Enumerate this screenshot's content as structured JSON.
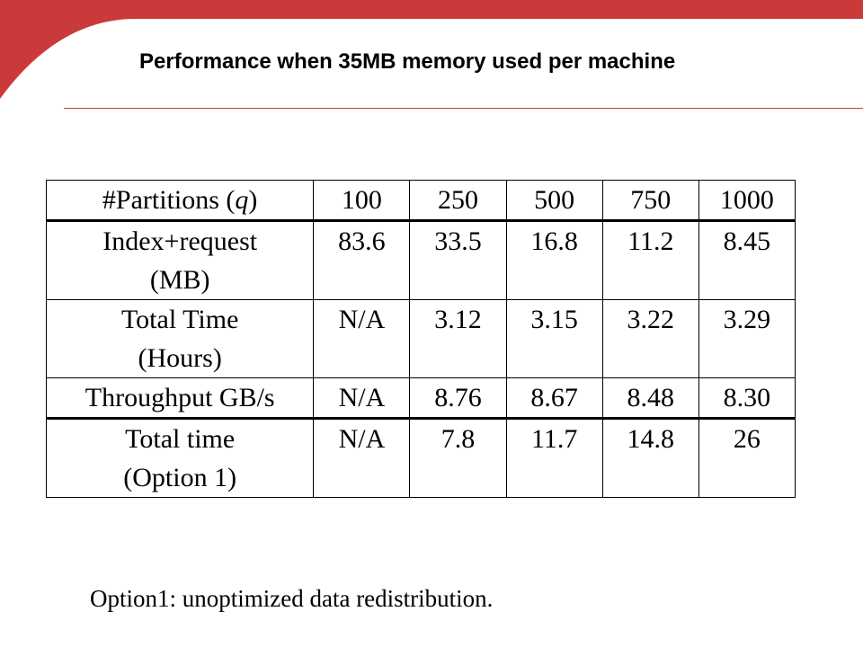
{
  "slide": {
    "title": "Performance when 35MB memory used per machine",
    "accent_color": "#cb3a3a",
    "footnote": "Option1: unoptimized data redistribution."
  },
  "table": {
    "header": {
      "label_text": "#Partitions (",
      "label_var": "q",
      "label_close": ")",
      "values": [
        "100",
        "250",
        "500",
        "750",
        "1000"
      ]
    },
    "rows": [
      {
        "label_line1": "Index+request",
        "label_line2": "(MB)",
        "values": [
          "83.6",
          "33.5",
          "16.8",
          "11.2",
          "8.45"
        ]
      },
      {
        "label_line1": "Total Time",
        "label_line2": "(Hours)",
        "values": [
          "N/A",
          "3.12",
          "3.15",
          "3.22",
          "3.29"
        ]
      },
      {
        "label_line1": "Throughput GB/s",
        "label_line2": "",
        "values": [
          "N/A",
          "8.76",
          "8.67",
          "8.48",
          "8.30"
        ]
      },
      {
        "label_line1": "Total time",
        "label_line2": "(Option 1)",
        "values": [
          "N/A",
          "7.8",
          "11.7",
          "14.8",
          "26"
        ]
      }
    ]
  }
}
